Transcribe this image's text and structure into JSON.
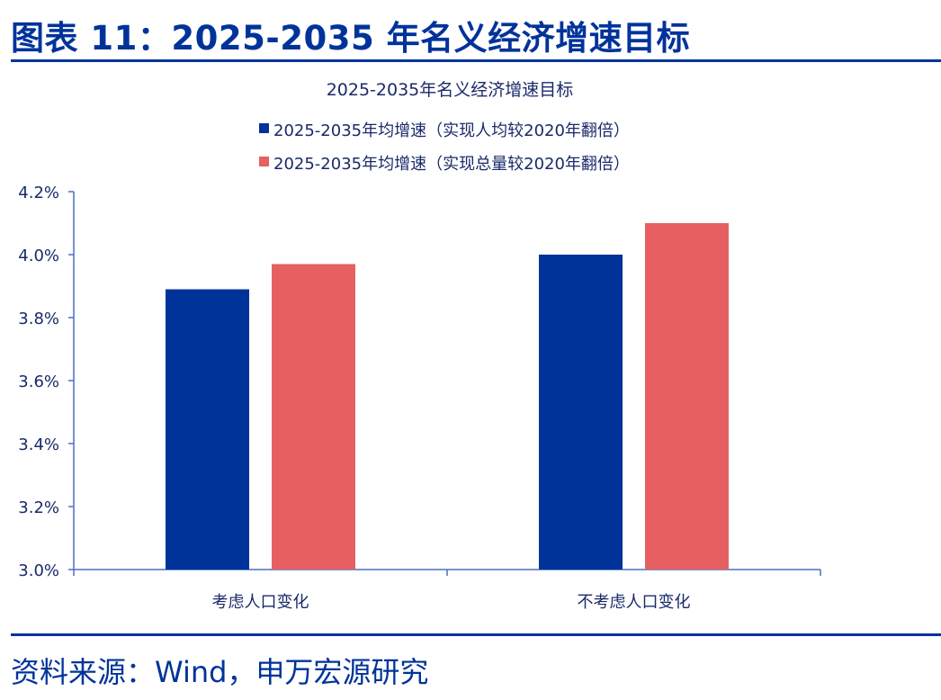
{
  "figure_title": "图表 11：2025-2035 年名义经济增速目标",
  "source": "资料来源：Wind，申万宏源研究",
  "colors": {
    "series1": "#003399",
    "series2": "#e66062",
    "axis": "#4a6fc4"
  },
  "chart_data": {
    "type": "bar",
    "title": "2025-2035年名义经济增速目标",
    "categories": [
      "考虑人口变化",
      "不考虑人口变化"
    ],
    "series": [
      {
        "name": "2025-2035年均增速（实现人均较2020年翻倍）",
        "values": [
          3.89,
          4.0
        ]
      },
      {
        "name": "2025-2035年均增速（实现总量较2020年翻倍）",
        "values": [
          3.97,
          4.1
        ]
      }
    ],
    "ylim": [
      3.0,
      4.2
    ],
    "yticks": [
      "3.0%",
      "3.2%",
      "3.4%",
      "3.6%",
      "3.8%",
      "4.0%",
      "4.2%"
    ],
    "ytick_values": [
      3.0,
      3.2,
      3.4,
      3.6,
      3.8,
      4.0,
      4.2
    ],
    "xlabel": "",
    "ylabel": "",
    "legend": "top",
    "grid": false
  }
}
